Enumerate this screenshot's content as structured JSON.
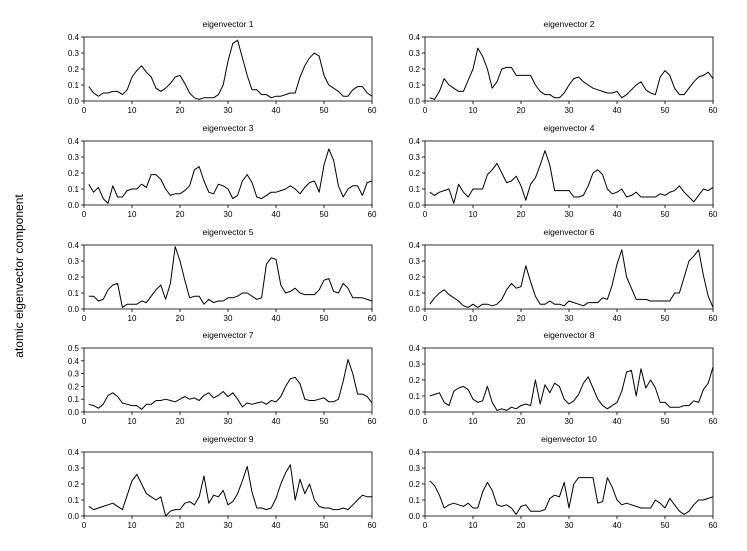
{
  "figure": {
    "ylabel": "atomic eigenvector component"
  },
  "chart_data": [
    {
      "type": "line",
      "title": "eigenvector 1",
      "xlim": [
        0,
        60
      ],
      "ylim": [
        0,
        0.4
      ],
      "xticks": [
        0,
        10,
        20,
        30,
        40,
        50,
        60
      ],
      "yticks": [
        "0.0",
        "0.1",
        "0.2",
        "0.3",
        "0.4"
      ],
      "x": [
        1,
        2,
        3,
        4,
        5,
        6,
        7,
        8,
        9,
        10,
        11,
        12,
        13,
        14,
        15,
        16,
        17,
        18,
        19,
        20,
        21,
        22,
        23,
        24,
        25,
        26,
        27,
        28,
        29,
        30,
        31,
        32,
        33,
        34,
        35,
        36,
        37,
        38,
        39,
        40,
        41,
        42,
        43,
        44,
        45,
        46,
        47,
        48,
        49,
        50,
        51,
        52,
        53,
        54,
        55,
        56,
        57,
        58,
        59,
        60
      ],
      "y": [
        0.09,
        0.05,
        0.03,
        0.05,
        0.05,
        0.06,
        0.06,
        0.04,
        0.07,
        0.15,
        0.19,
        0.22,
        0.18,
        0.15,
        0.08,
        0.06,
        0.08,
        0.11,
        0.15,
        0.16,
        0.11,
        0.05,
        0.02,
        0.01,
        0.02,
        0.02,
        0.02,
        0.04,
        0.1,
        0.25,
        0.36,
        0.38,
        0.27,
        0.16,
        0.07,
        0.07,
        0.04,
        0.04,
        0.02,
        0.03,
        0.03,
        0.04,
        0.05,
        0.05,
        0.15,
        0.22,
        0.27,
        0.3,
        0.28,
        0.16,
        0.1,
        0.08,
        0.06,
        0.03,
        0.03,
        0.07,
        0.09,
        0.09,
        0.05,
        0.03
      ]
    },
    {
      "type": "line",
      "title": "eigenvector 2",
      "xlim": [
        0,
        60
      ],
      "ylim": [
        0,
        0.4
      ],
      "xticks": [
        0,
        10,
        20,
        30,
        40,
        50,
        60
      ],
      "yticks": [
        "0.0",
        "0.1",
        "0.2",
        "0.3",
        "0.4"
      ],
      "x": [
        1,
        2,
        3,
        4,
        5,
        6,
        7,
        8,
        9,
        10,
        11,
        12,
        13,
        14,
        15,
        16,
        17,
        18,
        19,
        20,
        21,
        22,
        23,
        24,
        25,
        26,
        27,
        28,
        29,
        30,
        31,
        32,
        33,
        34,
        35,
        36,
        37,
        38,
        39,
        40,
        41,
        42,
        43,
        44,
        45,
        46,
        47,
        48,
        49,
        50,
        51,
        52,
        53,
        54,
        55,
        56,
        57,
        58,
        59,
        60
      ],
      "y": [
        0.02,
        0.01,
        0.06,
        0.14,
        0.1,
        0.08,
        0.06,
        0.06,
        0.13,
        0.2,
        0.33,
        0.28,
        0.2,
        0.08,
        0.12,
        0.2,
        0.21,
        0.21,
        0.16,
        0.16,
        0.16,
        0.16,
        0.1,
        0.06,
        0.04,
        0.04,
        0.02,
        0.02,
        0.05,
        0.1,
        0.14,
        0.15,
        0.12,
        0.1,
        0.08,
        0.07,
        0.06,
        0.05,
        0.05,
        0.06,
        0.02,
        0.04,
        0.07,
        0.1,
        0.12,
        0.07,
        0.05,
        0.04,
        0.15,
        0.19,
        0.16,
        0.08,
        0.04,
        0.04,
        0.08,
        0.12,
        0.15,
        0.16,
        0.18,
        0.14
      ]
    },
    {
      "type": "line",
      "title": "eigenvector 3",
      "xlim": [
        0,
        60
      ],
      "ylim": [
        0,
        0.4
      ],
      "xticks": [
        0,
        10,
        20,
        30,
        40,
        50,
        60
      ],
      "yticks": [
        "0.0",
        "0.1",
        "0.2",
        "0.3",
        "0.4"
      ],
      "x": [
        1,
        2,
        3,
        4,
        5,
        6,
        7,
        8,
        9,
        10,
        11,
        12,
        13,
        14,
        15,
        16,
        17,
        18,
        19,
        20,
        21,
        22,
        23,
        24,
        25,
        26,
        27,
        28,
        29,
        30,
        31,
        32,
        33,
        34,
        35,
        36,
        37,
        38,
        39,
        40,
        41,
        42,
        43,
        44,
        45,
        46,
        47,
        48,
        49,
        50,
        51,
        52,
        53,
        54,
        55,
        56,
        57,
        58,
        59,
        60
      ],
      "y": [
        0.13,
        0.08,
        0.11,
        0.04,
        0.01,
        0.12,
        0.05,
        0.05,
        0.09,
        0.1,
        0.1,
        0.13,
        0.11,
        0.19,
        0.19,
        0.16,
        0.1,
        0.06,
        0.07,
        0.07,
        0.09,
        0.12,
        0.22,
        0.24,
        0.15,
        0.08,
        0.07,
        0.13,
        0.12,
        0.1,
        0.04,
        0.06,
        0.15,
        0.19,
        0.14,
        0.05,
        0.04,
        0.06,
        0.08,
        0.08,
        0.09,
        0.1,
        0.12,
        0.1,
        0.07,
        0.11,
        0.14,
        0.15,
        0.08,
        0.25,
        0.35,
        0.28,
        0.12,
        0.05,
        0.1,
        0.12,
        0.12,
        0.06,
        0.14,
        0.15
      ]
    },
    {
      "type": "line",
      "title": "eigenvector 4",
      "xlim": [
        0,
        60
      ],
      "ylim": [
        0,
        0.4
      ],
      "xticks": [
        0,
        10,
        20,
        30,
        40,
        50,
        60
      ],
      "yticks": [
        "0.0",
        "0.1",
        "0.2",
        "0.3",
        "0.4"
      ],
      "x": [
        1,
        2,
        3,
        4,
        5,
        6,
        7,
        8,
        9,
        10,
        11,
        12,
        13,
        14,
        15,
        16,
        17,
        18,
        19,
        20,
        21,
        22,
        23,
        24,
        25,
        26,
        27,
        28,
        29,
        30,
        31,
        32,
        33,
        34,
        35,
        36,
        37,
        38,
        39,
        40,
        41,
        42,
        43,
        44,
        45,
        46,
        47,
        48,
        49,
        50,
        51,
        52,
        53,
        54,
        55,
        56,
        57,
        58,
        59,
        60
      ],
      "y": [
        0.08,
        0.06,
        0.08,
        0.09,
        0.1,
        0.01,
        0.13,
        0.08,
        0.05,
        0.1,
        0.1,
        0.1,
        0.19,
        0.22,
        0.26,
        0.2,
        0.14,
        0.15,
        0.18,
        0.12,
        0.03,
        0.13,
        0.17,
        0.25,
        0.34,
        0.25,
        0.09,
        0.09,
        0.09,
        0.09,
        0.05,
        0.05,
        0.06,
        0.12,
        0.2,
        0.22,
        0.19,
        0.1,
        0.07,
        0.08,
        0.1,
        0.05,
        0.06,
        0.08,
        0.05,
        0.05,
        0.05,
        0.05,
        0.07,
        0.06,
        0.08,
        0.09,
        0.12,
        0.08,
        0.05,
        0.02,
        0.06,
        0.1,
        0.09,
        0.11
      ]
    },
    {
      "type": "line",
      "title": "eigenvector 5",
      "xlim": [
        0,
        60
      ],
      "ylim": [
        0,
        0.4
      ],
      "xticks": [
        0,
        10,
        20,
        30,
        40,
        50,
        60
      ],
      "yticks": [
        "0.0",
        "0.1",
        "0.2",
        "0.3",
        "0.4"
      ],
      "x": [
        1,
        2,
        3,
        4,
        5,
        6,
        7,
        8,
        9,
        10,
        11,
        12,
        13,
        14,
        15,
        16,
        17,
        18,
        19,
        20,
        21,
        22,
        23,
        24,
        25,
        26,
        27,
        28,
        29,
        30,
        31,
        32,
        33,
        34,
        35,
        36,
        37,
        38,
        39,
        40,
        41,
        42,
        43,
        44,
        45,
        46,
        47,
        48,
        49,
        50,
        51,
        52,
        53,
        54,
        55,
        56,
        57,
        58,
        59,
        60
      ],
      "y": [
        0.08,
        0.08,
        0.05,
        0.06,
        0.12,
        0.15,
        0.16,
        0.01,
        0.03,
        0.03,
        0.03,
        0.05,
        0.04,
        0.08,
        0.12,
        0.15,
        0.06,
        0.16,
        0.39,
        0.3,
        0.18,
        0.07,
        0.08,
        0.08,
        0.03,
        0.06,
        0.04,
        0.05,
        0.05,
        0.07,
        0.07,
        0.08,
        0.1,
        0.1,
        0.08,
        0.06,
        0.07,
        0.28,
        0.32,
        0.31,
        0.15,
        0.1,
        0.11,
        0.13,
        0.1,
        0.09,
        0.09,
        0.09,
        0.12,
        0.18,
        0.19,
        0.11,
        0.1,
        0.16,
        0.13,
        0.07,
        0.07,
        0.07,
        0.06,
        0.05
      ]
    },
    {
      "type": "line",
      "title": "eigenvector 6",
      "xlim": [
        0,
        60
      ],
      "ylim": [
        0,
        0.4
      ],
      "xticks": [
        0,
        10,
        20,
        30,
        40,
        50,
        60
      ],
      "yticks": [
        "0.0",
        "0.1",
        "0.2",
        "0.3",
        "0.4"
      ],
      "x": [
        1,
        2,
        3,
        4,
        5,
        6,
        7,
        8,
        9,
        10,
        11,
        12,
        13,
        14,
        15,
        16,
        17,
        18,
        19,
        20,
        21,
        22,
        23,
        24,
        25,
        26,
        27,
        28,
        29,
        30,
        31,
        32,
        33,
        34,
        35,
        36,
        37,
        38,
        39,
        40,
        41,
        42,
        43,
        44,
        45,
        46,
        47,
        48,
        49,
        50,
        51,
        52,
        53,
        54,
        55,
        56,
        57,
        58,
        59,
        60
      ],
      "y": [
        0.03,
        0.07,
        0.1,
        0.12,
        0.09,
        0.07,
        0.05,
        0.02,
        0.01,
        0.03,
        0.01,
        0.03,
        0.03,
        0.02,
        0.03,
        0.06,
        0.12,
        0.16,
        0.13,
        0.14,
        0.27,
        0.17,
        0.08,
        0.03,
        0.03,
        0.05,
        0.03,
        0.03,
        0.02,
        0.05,
        0.04,
        0.03,
        0.02,
        0.04,
        0.04,
        0.04,
        0.07,
        0.06,
        0.15,
        0.28,
        0.37,
        0.2,
        0.13,
        0.06,
        0.06,
        0.06,
        0.05,
        0.05,
        0.05,
        0.05,
        0.05,
        0.1,
        0.1,
        0.2,
        0.3,
        0.33,
        0.37,
        0.21,
        0.08,
        0.01
      ]
    },
    {
      "type": "line",
      "title": "eigenvector 7",
      "xlim": [
        0,
        60
      ],
      "ylim": [
        0,
        0.5
      ],
      "xticks": [
        0,
        10,
        20,
        30,
        40,
        50,
        60
      ],
      "yticks": [
        "0.0",
        "0.1",
        "0.2",
        "0.3",
        "0.4",
        "0.5"
      ],
      "x": [
        1,
        2,
        3,
        4,
        5,
        6,
        7,
        8,
        9,
        10,
        11,
        12,
        13,
        14,
        15,
        16,
        17,
        18,
        19,
        20,
        21,
        22,
        23,
        24,
        25,
        26,
        27,
        28,
        29,
        30,
        31,
        32,
        33,
        34,
        35,
        36,
        37,
        38,
        39,
        40,
        41,
        42,
        43,
        44,
        45,
        46,
        47,
        48,
        49,
        50,
        51,
        52,
        53,
        54,
        55,
        56,
        57,
        58,
        59,
        60
      ],
      "y": [
        0.06,
        0.05,
        0.03,
        0.06,
        0.13,
        0.15,
        0.12,
        0.07,
        0.06,
        0.05,
        0.05,
        0.02,
        0.06,
        0.06,
        0.09,
        0.09,
        0.1,
        0.09,
        0.08,
        0.1,
        0.12,
        0.1,
        0.11,
        0.09,
        0.13,
        0.15,
        0.11,
        0.13,
        0.16,
        0.12,
        0.15,
        0.1,
        0.04,
        0.07,
        0.06,
        0.07,
        0.08,
        0.06,
        0.09,
        0.08,
        0.12,
        0.2,
        0.26,
        0.27,
        0.22,
        0.1,
        0.09,
        0.09,
        0.1,
        0.11,
        0.08,
        0.08,
        0.1,
        0.24,
        0.41,
        0.3,
        0.14,
        0.14,
        0.12,
        0.07
      ]
    },
    {
      "type": "line",
      "title": "eigenvector 8",
      "xlim": [
        0,
        60
      ],
      "ylim": [
        0,
        0.4
      ],
      "xticks": [
        0,
        10,
        20,
        30,
        40,
        50,
        60
      ],
      "yticks": [
        "0.0",
        "0.1",
        "0.2",
        "0.3",
        "0.4"
      ],
      "x": [
        1,
        2,
        3,
        4,
        5,
        6,
        7,
        8,
        9,
        10,
        11,
        12,
        13,
        14,
        15,
        16,
        17,
        18,
        19,
        20,
        21,
        22,
        23,
        24,
        25,
        26,
        27,
        28,
        29,
        30,
        31,
        32,
        33,
        34,
        35,
        36,
        37,
        38,
        39,
        40,
        41,
        42,
        43,
        44,
        45,
        46,
        47,
        48,
        49,
        50,
        51,
        52,
        53,
        54,
        55,
        56,
        57,
        58,
        59,
        60
      ],
      "y": [
        0.1,
        0.11,
        0.12,
        0.06,
        0.04,
        0.13,
        0.15,
        0.16,
        0.14,
        0.08,
        0.06,
        0.07,
        0.16,
        0.06,
        0.01,
        0.02,
        0.01,
        0.03,
        0.02,
        0.04,
        0.05,
        0.04,
        0.2,
        0.05,
        0.17,
        0.12,
        0.18,
        0.16,
        0.08,
        0.05,
        0.07,
        0.11,
        0.18,
        0.22,
        0.15,
        0.08,
        0.04,
        0.02,
        0.04,
        0.06,
        0.13,
        0.25,
        0.26,
        0.1,
        0.27,
        0.15,
        0.2,
        0.15,
        0.06,
        0.06,
        0.03,
        0.03,
        0.03,
        0.04,
        0.04,
        0.07,
        0.06,
        0.14,
        0.18,
        0.28
      ]
    },
    {
      "type": "line",
      "title": "eigenvector 9",
      "xlim": [
        0,
        60
      ],
      "ylim": [
        0,
        0.4
      ],
      "xticks": [
        0,
        10,
        20,
        30,
        40,
        50,
        60
      ],
      "yticks": [
        "0.0",
        "0.1",
        "0.2",
        "0.3",
        "0.4"
      ],
      "x": [
        1,
        2,
        3,
        4,
        5,
        6,
        7,
        8,
        9,
        10,
        11,
        12,
        13,
        14,
        15,
        16,
        17,
        18,
        19,
        20,
        21,
        22,
        23,
        24,
        25,
        26,
        27,
        28,
        29,
        30,
        31,
        32,
        33,
        34,
        35,
        36,
        37,
        38,
        39,
        40,
        41,
        42,
        43,
        44,
        45,
        46,
        47,
        48,
        49,
        50,
        51,
        52,
        53,
        54,
        55,
        56,
        57,
        58,
        59,
        60
      ],
      "y": [
        0.06,
        0.04,
        0.05,
        0.06,
        0.07,
        0.08,
        0.06,
        0.04,
        0.13,
        0.22,
        0.26,
        0.2,
        0.14,
        0.12,
        0.1,
        0.12,
        0.0,
        0.03,
        0.04,
        0.04,
        0.08,
        0.09,
        0.07,
        0.12,
        0.25,
        0.08,
        0.13,
        0.12,
        0.16,
        0.07,
        0.09,
        0.14,
        0.22,
        0.31,
        0.15,
        0.05,
        0.05,
        0.04,
        0.05,
        0.11,
        0.2,
        0.27,
        0.32,
        0.1,
        0.23,
        0.14,
        0.2,
        0.1,
        0.06,
        0.05,
        0.05,
        0.04,
        0.04,
        0.05,
        0.04,
        0.07,
        0.1,
        0.13,
        0.12,
        0.12
      ]
    },
    {
      "type": "line",
      "title": "eigenvector 10",
      "xlim": [
        0,
        60
      ],
      "ylim": [
        0,
        0.4
      ],
      "xticks": [
        0,
        10,
        20,
        30,
        40,
        50,
        60
      ],
      "yticks": [
        "0.0",
        "0.1",
        "0.2",
        "0.3",
        "0.4"
      ],
      "x": [
        1,
        2,
        3,
        4,
        5,
        6,
        7,
        8,
        9,
        10,
        11,
        12,
        13,
        14,
        15,
        16,
        17,
        18,
        19,
        20,
        21,
        22,
        23,
        24,
        25,
        26,
        27,
        28,
        29,
        30,
        31,
        32,
        33,
        34,
        35,
        36,
        37,
        38,
        39,
        40,
        41,
        42,
        43,
        44,
        45,
        46,
        47,
        48,
        49,
        50,
        51,
        52,
        53,
        54,
        55,
        56,
        57,
        58,
        59,
        60
      ],
      "y": [
        0.22,
        0.19,
        0.13,
        0.05,
        0.07,
        0.08,
        0.07,
        0.06,
        0.08,
        0.05,
        0.05,
        0.15,
        0.21,
        0.16,
        0.07,
        0.06,
        0.07,
        0.05,
        0.01,
        0.06,
        0.07,
        0.03,
        0.03,
        0.03,
        0.04,
        0.11,
        0.13,
        0.12,
        0.21,
        0.05,
        0.2,
        0.24,
        0.24,
        0.24,
        0.24,
        0.08,
        0.09,
        0.24,
        0.18,
        0.1,
        0.07,
        0.08,
        0.07,
        0.06,
        0.05,
        0.05,
        0.05,
        0.1,
        0.08,
        0.05,
        0.11,
        0.07,
        0.03,
        0.01,
        0.03,
        0.07,
        0.1,
        0.1,
        0.11,
        0.12
      ]
    }
  ]
}
